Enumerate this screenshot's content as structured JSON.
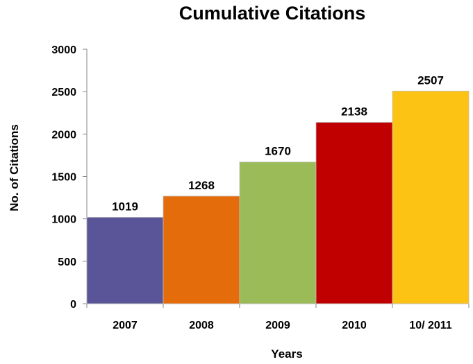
{
  "chart_data": {
    "type": "bar",
    "title": "Cumulative Citations",
    "xlabel": "Years",
    "ylabel": "No. of Citations",
    "categories": [
      "2007",
      "2008",
      "2009",
      "2010",
      "10/ 2011"
    ],
    "values": [
      1019,
      1268,
      1670,
      2138,
      2507
    ],
    "data_labels": [
      "1019",
      "1268",
      "1670",
      "2138",
      "2507"
    ],
    "colors": [
      "#5a5599",
      "#e46c0a",
      "#9bbb59",
      "#c00000",
      "#fcc214"
    ],
    "yticks": [
      "0",
      "500",
      "1000",
      "1500",
      "2000",
      "2500",
      "3000"
    ],
    "ylim": [
      0,
      3000
    ],
    "grid": false,
    "legend": "none"
  }
}
